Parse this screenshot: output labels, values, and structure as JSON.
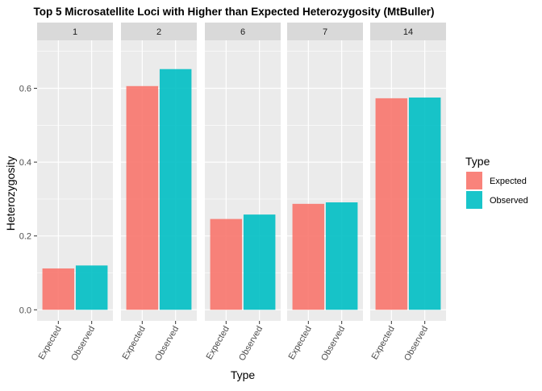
{
  "chart_data": {
    "type": "bar",
    "title": "Top 5 Microsatellite Loci with Higher than Expected Heterozygosity (MtBuller)",
    "xlabel": "Type",
    "ylabel": "Heterozygosity",
    "ylim": [
      -0.03,
      0.73
    ],
    "yticks": [
      0.0,
      0.2,
      0.4,
      0.6
    ],
    "ytick_labels": [
      "0.0",
      "0.2",
      "0.4",
      "0.6"
    ],
    "grid": true,
    "categories": [
      "Expected",
      "Observed"
    ],
    "facets": [
      {
        "label": "1",
        "values": [
          0.112,
          0.12
        ]
      },
      {
        "label": "2",
        "values": [
          0.606,
          0.652
        ]
      },
      {
        "label": "6",
        "values": [
          0.246,
          0.258
        ]
      },
      {
        "label": "7",
        "values": [
          0.287,
          0.291
        ]
      },
      {
        "label": "14",
        "values": [
          0.573,
          0.575
        ]
      }
    ],
    "legend": {
      "title": "Type",
      "position": "right",
      "entries": [
        "Expected",
        "Observed"
      ]
    },
    "colors": {
      "Expected": "#F8766D",
      "Observed": "#00BFC4",
      "panel_bg": "#EBEBEB",
      "strip_bg": "#D9D9D9",
      "grid": "#FFFFFF"
    }
  }
}
